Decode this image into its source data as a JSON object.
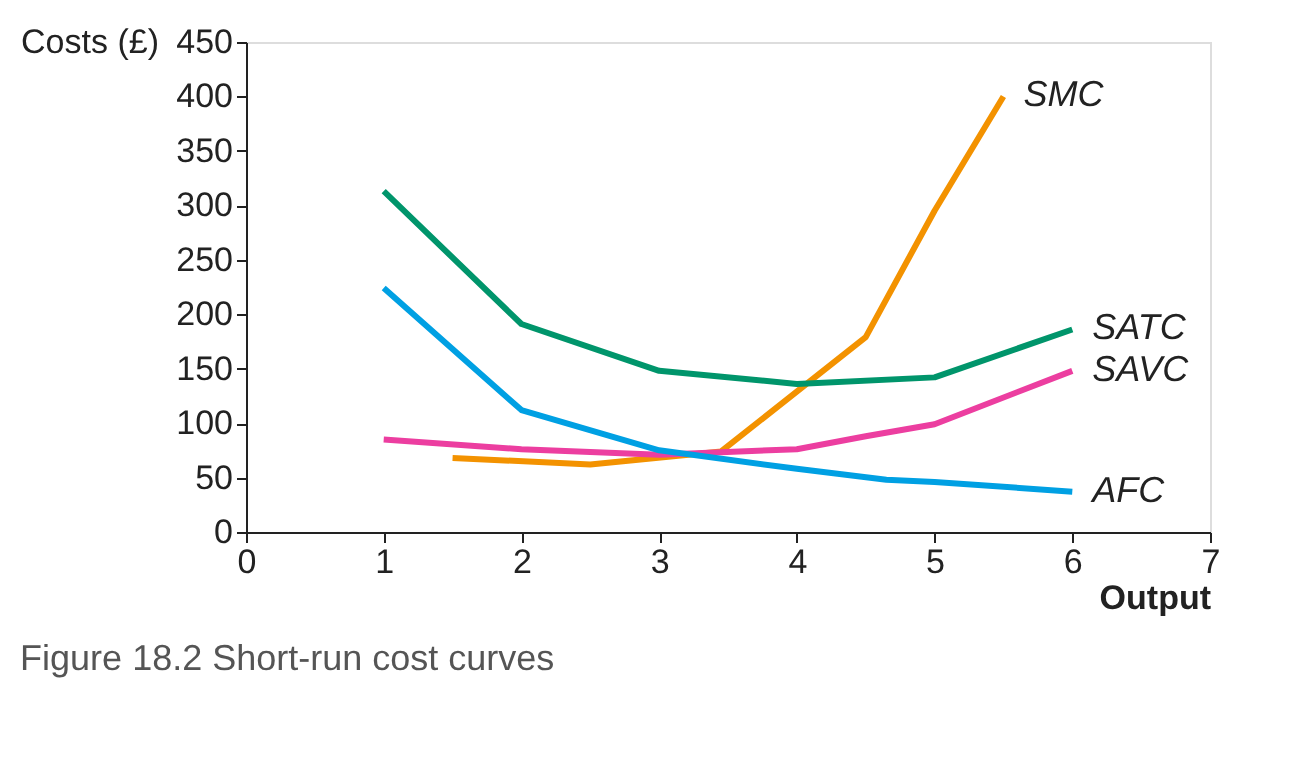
{
  "chart_data": {
    "type": "line",
    "title": "Figure 18.2 Short-run cost curves",
    "xlabel": "Output",
    "ylabel": "Costs (£)",
    "xlim": [
      0,
      7
    ],
    "xticks": [
      0,
      1,
      2,
      3,
      4,
      5,
      6,
      7
    ],
    "ylim": [
      0,
      450
    ],
    "yticks": [
      0,
      50,
      100,
      150,
      200,
      250,
      300,
      350,
      400,
      450
    ],
    "grid": false,
    "legend": false,
    "marker": "none",
    "line_style": "solid",
    "series": [
      {
        "name": "SMC",
        "color": "#f39200",
        "x": [
          1.5,
          2.5,
          3.45,
          4.5,
          5,
          5.5
        ],
        "values": [
          68,
          62,
          74,
          179,
          295,
          400
        ]
      },
      {
        "name": "SATC",
        "color": "#00956b",
        "x": [
          1,
          2,
          3,
          4,
          5,
          6
        ],
        "values": [
          313,
          191,
          148,
          136,
          142,
          186
        ]
      },
      {
        "name": "SAVC",
        "color": "#ec3ea0",
        "x": [
          1,
          2,
          3,
          4,
          4.5,
          5,
          6
        ],
        "values": [
          85,
          76,
          71,
          76,
          88,
          99,
          148
        ]
      },
      {
        "name": "AFC",
        "color": "#00a0e3",
        "x": [
          1,
          2,
          3,
          4,
          4.65,
          5,
          6
        ],
        "values": [
          224,
          112,
          75,
          58,
          48,
          46,
          37
        ]
      }
    ]
  }
}
